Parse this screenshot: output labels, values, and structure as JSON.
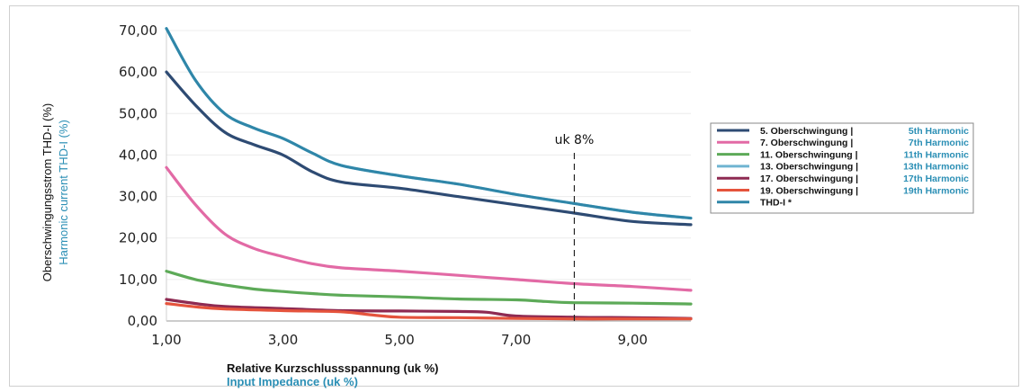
{
  "chart_data": {
    "type": "line",
    "ylabel": "Oberschwingungsstrom THD-I (%)",
    "ylabel_en": "Harmonic current THD-I (%)",
    "xlabel": "Relative Kurzschlussspannung (uk %)",
    "xlabel_en": "Input Impedance (uk %)",
    "xlim": [
      1,
      10
    ],
    "ylim": [
      0,
      70
    ],
    "x_ticks": [
      "1,00",
      "3,00",
      "5,00",
      "7,00",
      "9,00"
    ],
    "x_tick_values": [
      1,
      3,
      5,
      7,
      9
    ],
    "y_ticks": [
      "0,00",
      "10,00",
      "20,00",
      "30,00",
      "40,00",
      "50,00",
      "60,00",
      "70,00"
    ],
    "y_tick_values": [
      0,
      10,
      20,
      30,
      40,
      50,
      60,
      70
    ],
    "annotation": {
      "label": "uk 8%",
      "x": 8
    },
    "legend_placement": "right",
    "series": [
      {
        "name": "5. Oberschwingung |",
        "name_en": "5th Harmonic",
        "color": "#2e4b73",
        "points": [
          [
            1,
            60
          ],
          [
            1.5,
            52
          ],
          [
            2,
            45.5
          ],
          [
            2.5,
            42.5
          ],
          [
            3,
            40
          ],
          [
            3.5,
            36
          ],
          [
            4,
            33.5
          ],
          [
            5,
            32
          ],
          [
            6,
            30
          ],
          [
            7,
            28
          ],
          [
            8,
            26
          ],
          [
            9,
            24
          ],
          [
            10,
            23.2
          ]
        ]
      },
      {
        "name": "7. Oberschwingung |",
        "name_en": "7th Harmonic",
        "color": "#e26aa5",
        "points": [
          [
            1,
            37
          ],
          [
            1.5,
            28
          ],
          [
            2,
            21
          ],
          [
            2.5,
            17.5
          ],
          [
            3,
            15.5
          ],
          [
            3.5,
            13.8
          ],
          [
            4,
            12.8
          ],
          [
            5,
            12
          ],
          [
            6,
            11
          ],
          [
            7,
            10
          ],
          [
            8,
            9
          ],
          [
            9,
            8.3
          ],
          [
            10,
            7.4
          ]
        ]
      },
      {
        "name": "11. Oberschwingung |",
        "name_en": "11th Harmonic",
        "color": "#5daa58",
        "points": [
          [
            1,
            12
          ],
          [
            1.5,
            10
          ],
          [
            2,
            8.7
          ],
          [
            2.5,
            7.7
          ],
          [
            3,
            7.1
          ],
          [
            3.5,
            6.6
          ],
          [
            4,
            6.2
          ],
          [
            5,
            5.8
          ],
          [
            6,
            5.3
          ],
          [
            7,
            5.1
          ],
          [
            7.5,
            4.7
          ],
          [
            8,
            4.4
          ],
          [
            9,
            4.3
          ],
          [
            10,
            4.1
          ]
        ]
      },
      {
        "name": "13. Oberschwingung |",
        "name_en": "13th Harmonic",
        "color": "#6fb4d1",
        "points": [
          [
            1,
            70.5
          ],
          [
            1.5,
            58
          ],
          [
            2,
            50
          ],
          [
            2.5,
            46.5
          ],
          [
            3,
            44
          ],
          [
            3.5,
            40.5
          ],
          [
            4,
            37.5
          ],
          [
            5,
            35
          ],
          [
            6,
            33
          ],
          [
            7,
            30.5
          ],
          [
            8,
            28.3
          ],
          [
            9,
            26.2
          ],
          [
            10,
            24.8
          ]
        ]
      },
      {
        "name": "17. Oberschwingung |",
        "name_en": "17th Harmonic",
        "color": "#8e2a52",
        "points": [
          [
            1,
            5.2
          ],
          [
            1.5,
            4.2
          ],
          [
            2,
            3.5
          ],
          [
            3,
            3
          ],
          [
            4,
            2.5
          ],
          [
            5,
            2.4
          ],
          [
            6,
            2.3
          ],
          [
            6.5,
            2.1
          ],
          [
            7,
            1.2
          ],
          [
            8,
            0.9
          ],
          [
            9,
            0.8
          ],
          [
            10,
            0.6
          ]
        ]
      },
      {
        "name": "19. Oberschwingung |",
        "name_en": "19th Harmonic",
        "color": "#e5533c",
        "points": [
          [
            1,
            4.2
          ],
          [
            1.5,
            3.4
          ],
          [
            2,
            2.9
          ],
          [
            3,
            2.5
          ],
          [
            4,
            2.2
          ],
          [
            4.5,
            1.5
          ],
          [
            5,
            0.9
          ],
          [
            6,
            0.8
          ],
          [
            7,
            0.6
          ],
          [
            8,
            0.5
          ],
          [
            9,
            0.5
          ],
          [
            10,
            0.5
          ]
        ]
      },
      {
        "name": "THD-I *",
        "name_en": "",
        "color": "#2f86a8",
        "points": [
          [
            1,
            70.5
          ],
          [
            1.5,
            58
          ],
          [
            2,
            50
          ],
          [
            2.5,
            46.5
          ],
          [
            3,
            44
          ],
          [
            3.5,
            40.5
          ],
          [
            4,
            37.5
          ],
          [
            5,
            35
          ],
          [
            6,
            33
          ],
          [
            7,
            30.5
          ],
          [
            8,
            28.3
          ],
          [
            9,
            26.2
          ],
          [
            10,
            24.8
          ]
        ]
      }
    ]
  }
}
